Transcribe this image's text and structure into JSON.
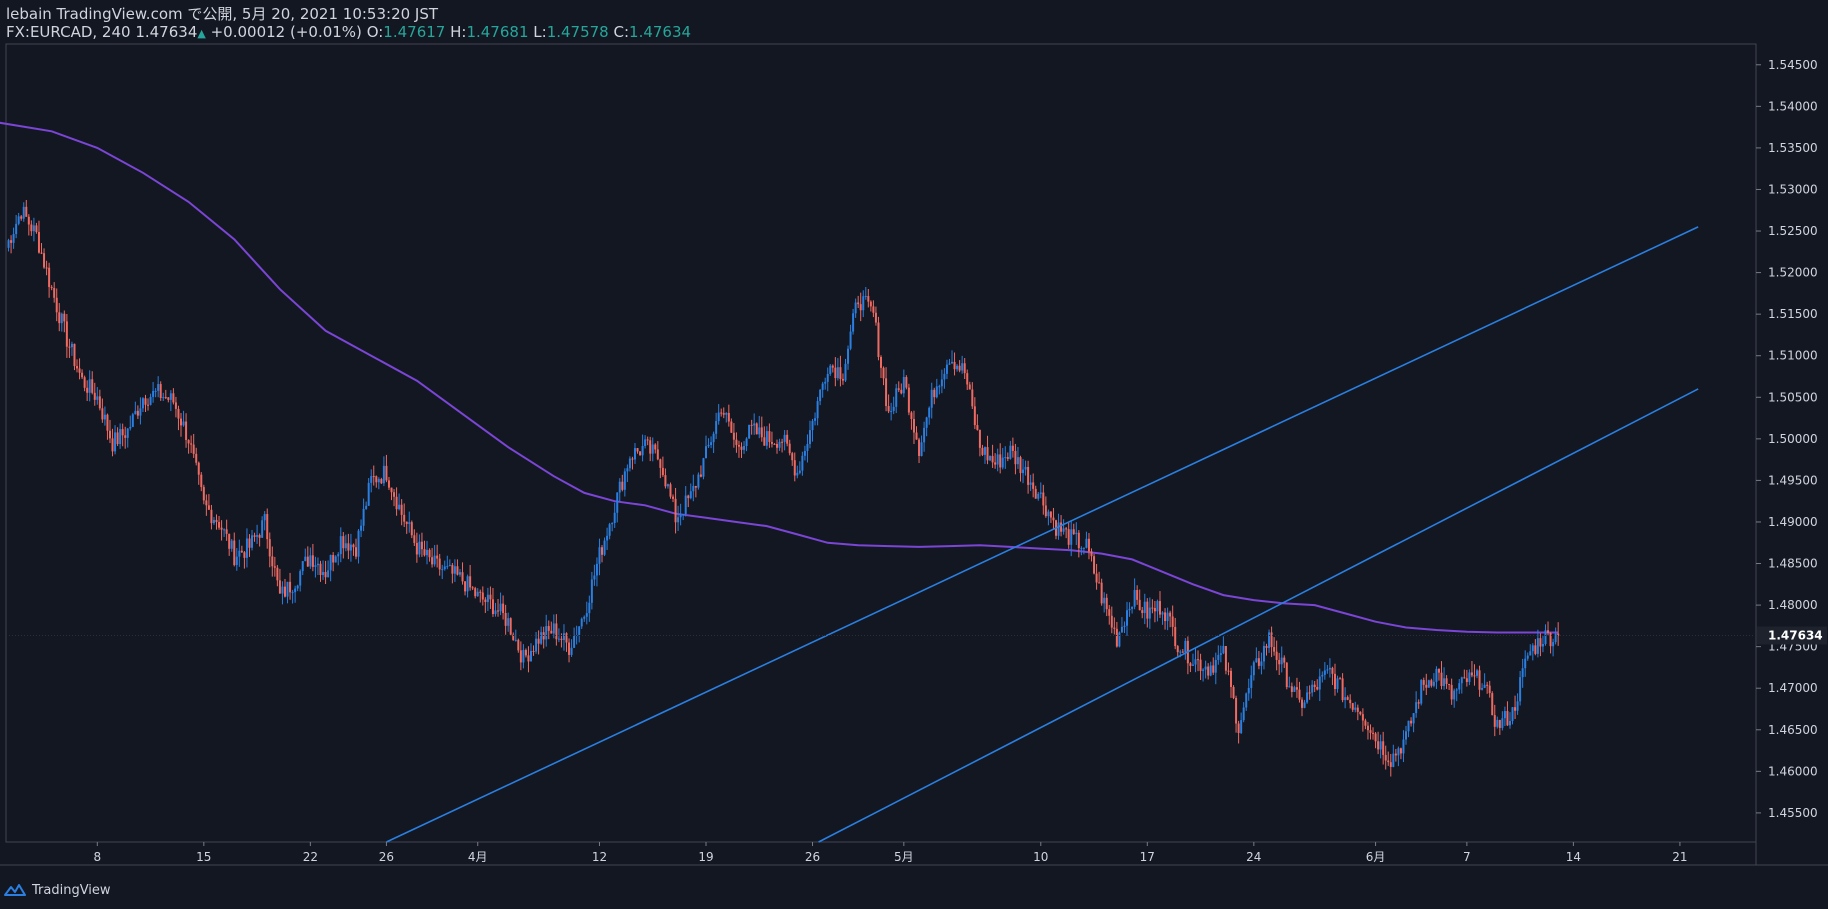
{
  "header": {
    "publish_line": "lebain TradingView.com で公開, 5月 20, 2021 10:53:20 JST",
    "symbol": "FX:EURCAD, 240",
    "last": "1.47634",
    "change": "+0.00012 (+0.01%)",
    "o_label": "O:",
    "o_val": "1.47617",
    "h_label": "H:",
    "h_val": "1.47681",
    "l_label": "L:",
    "l_val": "1.47578",
    "c_label": "C:",
    "c_val": "1.47634"
  },
  "footer": {
    "brand": "TradingView"
  },
  "colors": {
    "background": "#131722",
    "up": "#2a7fe0",
    "down": "#ef6b62",
    "ma": "#7b45d6",
    "trendline": "#2a7fe0",
    "axis_text": "#d1d4dc",
    "price_tag": "#1e222d"
  },
  "chart_data": {
    "type": "candlestick",
    "symbol": "FX:EURCAD",
    "timeframe": "240",
    "x_ticks": [
      {
        "label": "8",
        "day": 6
      },
      {
        "label": "15",
        "day": 13
      },
      {
        "label": "22",
        "day": 20
      },
      {
        "label": "26",
        "day": 25
      },
      {
        "label": "4月",
        "day": 31
      },
      {
        "label": "12",
        "day": 39
      },
      {
        "label": "19",
        "day": 46
      },
      {
        "label": "26",
        "day": 53
      },
      {
        "label": "5月",
        "day": 59
      },
      {
        "label": "10",
        "day": 68
      },
      {
        "label": "17",
        "day": 75
      },
      {
        "label": "24",
        "day": 82
      },
      {
        "label": "6月",
        "day": 90
      },
      {
        "label": "7",
        "day": 96
      },
      {
        "label": "14",
        "day": 103
      },
      {
        "label": "21",
        "day": 110
      }
    ],
    "y_ticks": [
      "1.54500",
      "1.54000",
      "1.53500",
      "1.53000",
      "1.52500",
      "1.52000",
      "1.51500",
      "1.51000",
      "1.50500",
      "1.50000",
      "1.49500",
      "1.49000",
      "1.48500",
      "1.48000",
      "1.47500",
      "1.47000",
      "1.46500",
      "1.46000",
      "1.45500"
    ],
    "ylim": [
      1.4515,
      1.5475
    ],
    "xlim": [
      0,
      115
    ],
    "last_price": "1.47634",
    "anchors": [
      [
        0,
        1.523
      ],
      [
        1,
        1.5275
      ],
      [
        2,
        1.5245
      ],
      [
        3,
        1.518
      ],
      [
        4,
        1.512
      ],
      [
        5,
        1.507
      ],
      [
        6,
        1.505
      ],
      [
        7,
        1.4995
      ],
      [
        8,
        1.501
      ],
      [
        9,
        1.505
      ],
      [
        10,
        1.5055
      ],
      [
        11,
        1.5045
      ],
      [
        12,
        1.5
      ],
      [
        13,
        1.492
      ],
      [
        14,
        1.49
      ],
      [
        15,
        1.486
      ],
      [
        16,
        1.487
      ],
      [
        17,
        1.49
      ],
      [
        18,
        1.481
      ],
      [
        19,
        1.483
      ],
      [
        20,
        1.486
      ],
      [
        21,
        1.484
      ],
      [
        22,
        1.488
      ],
      [
        23,
        1.487
      ],
      [
        24,
        1.495
      ],
      [
        25,
        1.496
      ],
      [
        26,
        1.491
      ],
      [
        27,
        1.487
      ],
      [
        28,
        1.485
      ],
      [
        29,
        1.484
      ],
      [
        30,
        1.483
      ],
      [
        31,
        1.481
      ],
      [
        32,
        1.48
      ],
      [
        33,
        1.478
      ],
      [
        34,
        1.4735
      ],
      [
        35,
        1.476
      ],
      [
        36,
        1.477
      ],
      [
        37,
        1.475
      ],
      [
        38,
        1.479
      ],
      [
        39,
        1.486
      ],
      [
        40,
        1.492
      ],
      [
        41,
        1.498
      ],
      [
        42,
        1.499
      ],
      [
        43,
        1.4975
      ],
      [
        44,
        1.4905
      ],
      [
        45,
        1.493
      ],
      [
        46,
        1.498
      ],
      [
        47,
        1.504
      ],
      [
        48,
        1.499
      ],
      [
        49,
        1.501
      ],
      [
        50,
        1.5
      ],
      [
        51,
        1.5
      ],
      [
        52,
        1.496
      ],
      [
        53,
        1.502
      ],
      [
        54,
        1.509
      ],
      [
        55,
        1.508
      ],
      [
        56,
        1.517
      ],
      [
        57,
        1.515
      ],
      [
        58,
        1.503
      ],
      [
        59,
        1.507
      ],
      [
        60,
        1.499
      ],
      [
        61,
        1.506
      ],
      [
        62,
        1.51
      ],
      [
        63,
        1.508
      ],
      [
        64,
        1.499
      ],
      [
        65,
        1.497
      ],
      [
        66,
        1.4985
      ],
      [
        67,
        1.496
      ],
      [
        68,
        1.493
      ],
      [
        69,
        1.4895
      ],
      [
        70,
        1.488
      ],
      [
        71,
        1.487
      ],
      [
        72,
        1.481
      ],
      [
        73,
        1.476
      ],
      [
        74,
        1.481
      ],
      [
        75,
        1.479
      ],
      [
        76,
        1.48
      ],
      [
        77,
        1.4755
      ],
      [
        78,
        1.4735
      ],
      [
        79,
        1.4725
      ],
      [
        80,
        1.474
      ],
      [
        81,
        1.4655
      ],
      [
        82,
        1.472
      ],
      [
        83,
        1.476
      ],
      [
        84,
        1.472
      ],
      [
        85,
        1.468
      ],
      [
        86,
        1.47
      ],
      [
        87,
        1.472
      ],
      [
        88,
        1.469
      ],
      [
        89,
        1.4675
      ],
      [
        90,
        1.464
      ],
      [
        91,
        1.4615
      ],
      [
        92,
        1.464
      ],
      [
        93,
        1.47
      ],
      [
        94,
        1.472
      ],
      [
        95,
        1.469
      ],
      [
        96,
        1.471
      ],
      [
        97,
        1.471
      ],
      [
        98,
        1.4655
      ],
      [
        99,
        1.467
      ],
      [
        100,
        1.474
      ],
      [
        101,
        1.4762
      ],
      [
        102,
        1.4763
      ]
    ],
    "moving_average": [
      [
        -2,
        1.5385
      ],
      [
        3,
        1.537
      ],
      [
        6,
        1.535
      ],
      [
        9,
        1.532
      ],
      [
        12,
        1.5285
      ],
      [
        15,
        1.524
      ],
      [
        18,
        1.518
      ],
      [
        21,
        1.513
      ],
      [
        24,
        1.51
      ],
      [
        27,
        1.507
      ],
      [
        30,
        1.503
      ],
      [
        33,
        1.499
      ],
      [
        36,
        1.4955
      ],
      [
        38,
        1.4935
      ],
      [
        40,
        1.4925
      ],
      [
        42,
        1.492
      ],
      [
        44,
        1.491
      ],
      [
        46,
        1.4905
      ],
      [
        48,
        1.49
      ],
      [
        50,
        1.4895
      ],
      [
        52,
        1.4885
      ],
      [
        54,
        1.4875
      ],
      [
        56,
        1.4872
      ],
      [
        58,
        1.4871
      ],
      [
        60,
        1.487
      ],
      [
        62,
        1.4871
      ],
      [
        64,
        1.4872
      ],
      [
        66,
        1.487
      ],
      [
        68,
        1.4868
      ],
      [
        70,
        1.4866
      ],
      [
        72,
        1.4862
      ],
      [
        74,
        1.4855
      ],
      [
        76,
        1.484
      ],
      [
        78,
        1.4825
      ],
      [
        80,
        1.4812
      ],
      [
        82,
        1.4806
      ],
      [
        84,
        1.4802
      ],
      [
        86,
        1.48
      ],
      [
        88,
        1.479
      ],
      [
        90,
        1.478
      ],
      [
        92,
        1.4773
      ],
      [
        94,
        1.477
      ],
      [
        96,
        1.4768
      ],
      [
        98,
        1.4767
      ],
      [
        100,
        1.4767
      ],
      [
        102,
        1.4767
      ]
    ],
    "trendlines": [
      {
        "from": [
          25.0,
          1.4515
        ],
        "to": [
          111.2,
          1.5255
        ]
      },
      {
        "from": [
          53.4,
          1.4515
        ],
        "to": [
          111.2,
          1.506
        ]
      }
    ]
  }
}
